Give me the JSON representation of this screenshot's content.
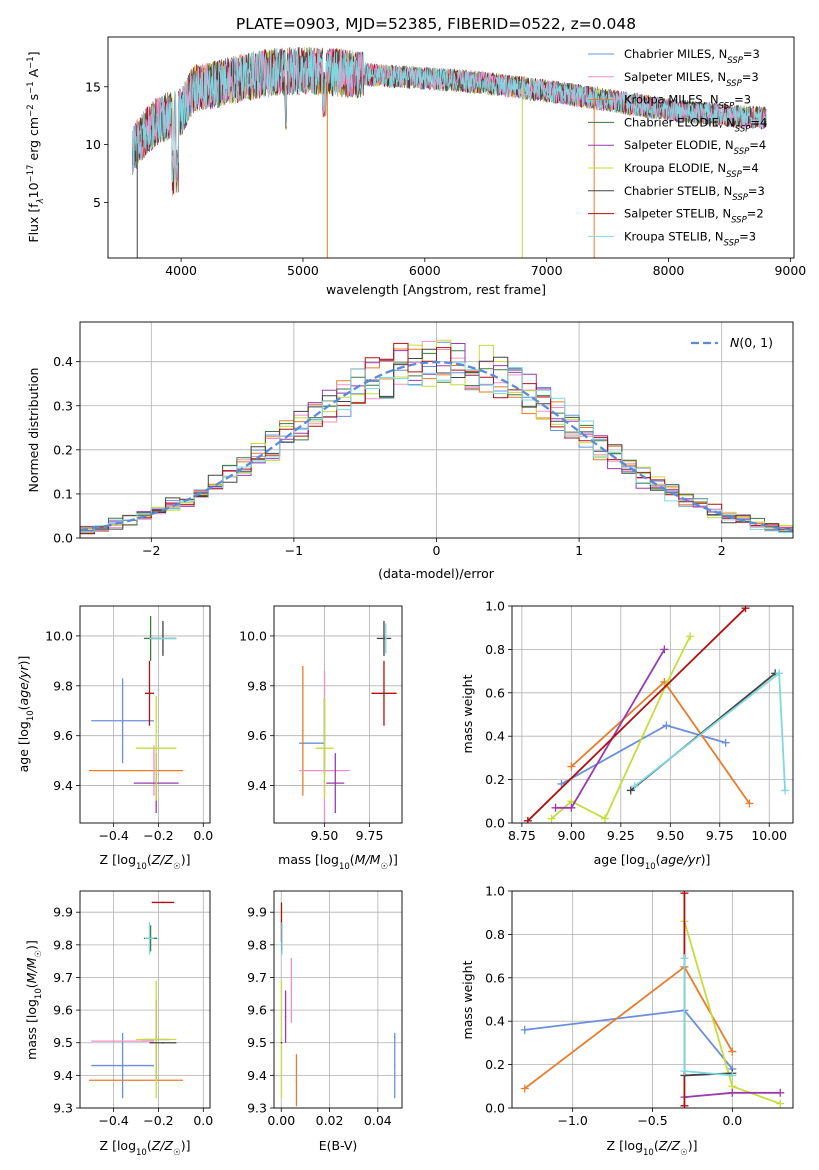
{
  "title": "PLATE=0903, MJD=52385, FIBERID=0522, z=0.048",
  "colors": {
    "chabrier_miles": "#6a8fdc",
    "salpeter_miles": "#e87c2a",
    "kroupa_miles": "#f08fc6",
    "chabrier_elodie": "#3d7a3d",
    "salpeter_elodie": "#9a3ab0",
    "kroupa_elodie": "#c6dc3c",
    "chabrier_stelib": "#444444",
    "salpeter_stelib": "#b01010",
    "kroupa_stelib": "#7fd8e0",
    "normal_line": "#5b8bd8"
  },
  "chart_data": [
    {
      "id": "spectrum",
      "type": "line",
      "xlabel": "wavelength [Angstrom, rest frame]",
      "ylabel": "Flux [fλ10⁻¹⁷ erg cm⁻² s⁻¹ A⁻¹]",
      "xlim": [
        3400,
        9030
      ],
      "ylim": [
        0.2,
        19.3
      ],
      "xticks": [
        4000,
        5000,
        6000,
        7000,
        8000,
        9000
      ],
      "yticks": [
        5,
        10,
        15
      ],
      "continuum": {
        "x": [
          3600,
          3700,
          3800,
          3900,
          4000,
          4100,
          4200,
          4400,
          4600,
          4800,
          5000,
          5300,
          5600,
          5900,
          6200,
          6500,
          6800,
          7100,
          7400,
          7700,
          8000,
          8300,
          8600,
          8800
        ],
        "y": [
          9.5,
          11.0,
          12.0,
          12.5,
          12.8,
          14.8,
          15.0,
          15.5,
          16.0,
          16.3,
          16.4,
          16.2,
          16.0,
          15.8,
          15.6,
          15.3,
          14.9,
          14.5,
          14.0,
          13.5,
          13.0,
          12.7,
          12.4,
          12.3
        ]
      },
      "legend": [
        {
          "label": "Chabrier MILES, N",
          "sub": "SSP",
          "suffix": "=3",
          "color": "#6a8fdc"
        },
        {
          "label": "Salpeter MILES, N",
          "sub": "SSP",
          "suffix": "=3",
          "color": "#f08fc6"
        },
        {
          "label": "Kroupa MILES, N",
          "sub": "SSP",
          "suffix": "=3",
          "color": "#e87c2a"
        },
        {
          "label": "Chabrier ELODIE, N",
          "sub": "SSP",
          "suffix": "=4",
          "color": "#3d7a3d"
        },
        {
          "label": "Salpeter ELODIE, N",
          "sub": "SSP",
          "suffix": "=4",
          "color": "#9a3ab0"
        },
        {
          "label": "Kroupa ELODIE, N",
          "sub": "SSP",
          "suffix": "=4",
          "color": "#c6dc3c"
        },
        {
          "label": "Chabrier STELIB, N",
          "sub": "SSP",
          "suffix": "=3",
          "color": "#444444"
        },
        {
          "label": "Salpeter STELIB, N",
          "sub": "SSP",
          "suffix": "=2",
          "color": "#b01010"
        },
        {
          "label": "Kroupa STELIB, N",
          "sub": "SSP",
          "suffix": "=3",
          "color": "#7fd8e0"
        }
      ],
      "legend_loc": "upper-right"
    },
    {
      "id": "residuals",
      "type": "histogram",
      "xlabel": "(data-model)/error",
      "ylabel": "Normed distribution",
      "xlim": [
        -2.5,
        2.5
      ],
      "ylim": [
        0,
        0.49
      ],
      "xticks": [
        -2,
        -1,
        0,
        1,
        2
      ],
      "yticks": [
        0.0,
        0.1,
        0.2,
        0.3,
        0.4
      ],
      "bin_width": 0.1,
      "legend_label": "N(0, 1)",
      "legend_loc": "upper-right"
    },
    {
      "id": "z_age",
      "type": "errorbar",
      "xlabel": "Z [log10(Z/Z☉)]",
      "ylabel": "age  [log10(age/yr)]",
      "xlim": [
        -0.55,
        0.03
      ],
      "ylim": [
        9.25,
        10.12
      ],
      "xticks": [
        -0.4,
        -0.2,
        0.0
      ],
      "yticks": [
        9.4,
        9.6,
        9.8,
        10.0
      ],
      "points": [
        {
          "x": -0.36,
          "y": 9.66,
          "xerr": 0.14,
          "yerr": 0.17,
          "color": "#6a8fdc"
        },
        {
          "x": -0.3,
          "y": 9.46,
          "xerr": 0.21,
          "yerr": 0.0,
          "color": "#e87c2a"
        },
        {
          "x": -0.22,
          "y": 9.46,
          "xerr": 0.0,
          "yerr": 0.1,
          "color": "#f08fc6"
        },
        {
          "x": -0.235,
          "y": 9.99,
          "xerr": 0.03,
          "yerr": 0.09,
          "color": "#3d7a3d"
        },
        {
          "x": -0.21,
          "y": 9.41,
          "xerr": 0.1,
          "yerr": 0.12,
          "color": "#9a3ab0"
        },
        {
          "x": -0.21,
          "y": 9.55,
          "xerr": 0.09,
          "yerr": 0.21,
          "color": "#c6dc3c"
        },
        {
          "x": -0.18,
          "y": 9.99,
          "xerr": 0.06,
          "yerr": 0.07,
          "color": "#444444"
        },
        {
          "x": -0.24,
          "y": 9.77,
          "xerr": 0.02,
          "yerr": 0.13,
          "color": "#b01010"
        },
        {
          "x": -0.18,
          "y": 9.99,
          "xerr": 0.06,
          "yerr": 0.0,
          "color": "#7fd8e0"
        }
      ]
    },
    {
      "id": "mass_age",
      "type": "errorbar",
      "xlabel": "mass [log10(M/M☉)]",
      "ylabel": "",
      "xlim": [
        9.22,
        9.93
      ],
      "ylim": [
        9.25,
        10.12
      ],
      "xticks": [
        9.5,
        9.75
      ],
      "yticks": [
        9.4,
        9.6,
        9.8,
        10.0
      ],
      "points": [
        {
          "x": 9.43,
          "y": 9.57,
          "xerr": 0.07,
          "yerr": 0.0,
          "color": "#6a8fdc"
        },
        {
          "x": 9.38,
          "y": 9.62,
          "xerr": 0.0,
          "yerr": 0.26,
          "color": "#e87c2a"
        },
        {
          "x": 9.5,
          "y": 9.46,
          "xerr": 0.14,
          "yerr": 0.4,
          "color": "#f08fc6"
        },
        {
          "x": 9.5,
          "y": 9.6,
          "xerr": 0.0,
          "yerr": 0.15,
          "color": "#3d7a3d"
        },
        {
          "x": 9.56,
          "y": 9.41,
          "xerr": 0.05,
          "yerr": 0.12,
          "color": "#9a3ab0"
        },
        {
          "x": 9.5,
          "y": 9.55,
          "xerr": 0.05,
          "yerr": 0.2,
          "color": "#c6dc3c"
        },
        {
          "x": 9.83,
          "y": 9.99,
          "xerr": 0.04,
          "yerr": 0.07,
          "color": "#444444"
        },
        {
          "x": 9.83,
          "y": 9.77,
          "xerr": 0.07,
          "yerr": 0.13,
          "color": "#b01010"
        },
        {
          "x": 9.84,
          "y": 9.99,
          "xerr": 0.0,
          "yerr": 0.06,
          "color": "#7fd8e0"
        }
      ]
    },
    {
      "id": "age_weight",
      "type": "line",
      "xlabel": "age  [log10(age/yr)]",
      "ylabel": "mass weight",
      "xlim": [
        8.7,
        10.12
      ],
      "ylim": [
        0.0,
        1.0
      ],
      "xticks": [
        8.75,
        9.0,
        9.25,
        9.5,
        9.75,
        10.0
      ],
      "yticks": [
        0.0,
        0.2,
        0.4,
        0.6,
        0.8,
        1.0
      ],
      "series": [
        {
          "color": "#6a8fdc",
          "x": [
            8.95,
            9.48,
            9.78
          ],
          "y": [
            0.18,
            0.45,
            0.37
          ]
        },
        {
          "color": "#e87c2a",
          "x": [
            9.0,
            9.47,
            9.9
          ],
          "y": [
            0.26,
            0.65,
            0.09
          ]
        },
        {
          "color": "#c6dc3c",
          "x": [
            8.9,
            9.0,
            9.17,
            9.48,
            9.6
          ],
          "y": [
            0.02,
            0.1,
            0.02,
            0.64,
            0.86
          ]
        },
        {
          "color": "#9a3ab0",
          "x": [
            8.92,
            9.0,
            9.47
          ],
          "y": [
            0.07,
            0.07,
            0.8
          ]
        },
        {
          "color": "#b01010",
          "x": [
            8.78,
            9.88
          ],
          "y": [
            0.01,
            0.99
          ]
        },
        {
          "color": "#444444",
          "x": [
            9.3,
            10.03
          ],
          "y": [
            0.15,
            0.69
          ]
        },
        {
          "color": "#7fd8e0",
          "x": [
            9.32,
            10.05,
            10.08
          ],
          "y": [
            0.17,
            0.69,
            0.15
          ]
        }
      ]
    },
    {
      "id": "z_mass",
      "type": "errorbar",
      "xlabel": "Z [log10(Z/Z☉)]",
      "ylabel": "mass [log10(M/M☉)]",
      "xlim": [
        -0.55,
        0.03
      ],
      "ylim": [
        9.3,
        9.965
      ],
      "xticks": [
        -0.4,
        -0.2,
        0.0
      ],
      "yticks": [
        9.3,
        9.4,
        9.5,
        9.6,
        9.7,
        9.8,
        9.9
      ],
      "points": [
        {
          "x": -0.36,
          "y": 9.43,
          "xerr": 0.14,
          "yerr": 0.1,
          "color": "#6a8fdc"
        },
        {
          "x": -0.3,
          "y": 9.385,
          "xerr": 0.21,
          "yerr": 0.0,
          "color": "#e87c2a"
        },
        {
          "x": -0.36,
          "y": 9.505,
          "xerr": 0.14,
          "yerr": 0.0,
          "color": "#f08fc6"
        },
        {
          "x": -0.235,
          "y": 9.82,
          "xerr": 0.03,
          "yerr": 0.04,
          "color": "#3d7a3d"
        },
        {
          "x": -0.21,
          "y": 9.51,
          "xerr": 0.06,
          "yerr": 0.12,
          "color": "#9a3ab0"
        },
        {
          "x": -0.21,
          "y": 9.51,
          "xerr": 0.09,
          "yerr": 0.18,
          "color": "#c6dc3c"
        },
        {
          "x": -0.18,
          "y": 9.5,
          "xerr": 0.06,
          "yerr": 0.0,
          "color": "#444444"
        },
        {
          "x": -0.18,
          "y": 9.93,
          "xerr": 0.05,
          "yerr": 0.0,
          "color": "#b01010"
        },
        {
          "x": -0.24,
          "y": 9.82,
          "xerr": 0.02,
          "yerr": 0.05,
          "color": "#7fd8e0"
        }
      ]
    },
    {
      "id": "ebv_mass",
      "type": "errorbar",
      "xlabel": "E(B-V)",
      "ylabel": "",
      "xlim": [
        -0.003,
        0.05
      ],
      "ylim": [
        9.3,
        9.965
      ],
      "xticks": [
        0.0,
        0.02,
        0.04
      ],
      "yticks": [
        9.3,
        9.4,
        9.5,
        9.6,
        9.7,
        9.8,
        9.9
      ],
      "points": [
        {
          "x": 0.047,
          "y": 9.43,
          "xerr": 0.0,
          "yerr": 0.1,
          "color": "#6a8fdc"
        },
        {
          "x": 0.0063,
          "y": 9.385,
          "xerr": 0.0,
          "yerr": 0.08,
          "color": "#e87c2a"
        },
        {
          "x": 0.0042,
          "y": 9.66,
          "xerr": 0.0,
          "yerr": 0.1,
          "color": "#f08fc6"
        },
        {
          "x": 0.0002,
          "y": 9.82,
          "xerr": 0.0,
          "yerr": 0.04,
          "color": "#3d7a3d"
        },
        {
          "x": 0.0018,
          "y": 9.58,
          "xerr": 0.0,
          "yerr": 0.08,
          "color": "#9a3ab0"
        },
        {
          "x": 0.0001,
          "y": 9.51,
          "xerr": 0.0,
          "yerr": 0.18,
          "color": "#c6dc3c"
        },
        {
          "x": 0.0001,
          "y": 9.5,
          "xerr": 0.0,
          "yerr": 0.0,
          "color": "#444444"
        },
        {
          "x": 0.0001,
          "y": 9.87,
          "xerr": 0.0,
          "yerr": 0.06,
          "color": "#b01010"
        },
        {
          "x": 0.0003,
          "y": 9.82,
          "xerr": 0.0,
          "yerr": 0.05,
          "color": "#7fd8e0"
        }
      ]
    },
    {
      "id": "z_weight",
      "type": "line",
      "xlabel": "Z [log10(Z/Z☉)]",
      "ylabel": "mass weight",
      "xlim": [
        -1.38,
        0.38
      ],
      "ylim": [
        0.0,
        1.0
      ],
      "xticks": [
        -1.0,
        -0.5,
        0.0
      ],
      "yticks": [
        0.0,
        0.2,
        0.4,
        0.6,
        0.8,
        1.0
      ],
      "series": [
        {
          "color": "#6a8fdc",
          "x": [
            -1.3,
            -0.3,
            0.0
          ],
          "y": [
            0.36,
            0.45,
            0.18
          ]
        },
        {
          "color": "#e87c2a",
          "x": [
            -1.3,
            -0.3,
            0.0
          ],
          "y": [
            0.09,
            0.65,
            0.26
          ]
        },
        {
          "color": "#c6dc3c",
          "x": [
            -0.3,
            0.0,
            0.3
          ],
          "y": [
            0.86,
            0.1,
            0.02
          ]
        },
        {
          "color": "#9a3ab0",
          "x": [
            -0.3,
            0.0,
            0.3
          ],
          "y": [
            0.05,
            0.07,
            0.07
          ]
        },
        {
          "color": "#b01010",
          "x": [
            -0.3,
            -0.3
          ],
          "y": [
            0.01,
            0.99
          ]
        },
        {
          "color": "#444444",
          "x": [
            -0.3,
            0.0
          ],
          "y": [
            0.15,
            0.16
          ]
        },
        {
          "color": "#7fd8e0",
          "x": [
            -0.3,
            -0.3,
            0.0
          ],
          "y": [
            0.69,
            0.17,
            0.15
          ]
        }
      ]
    }
  ]
}
